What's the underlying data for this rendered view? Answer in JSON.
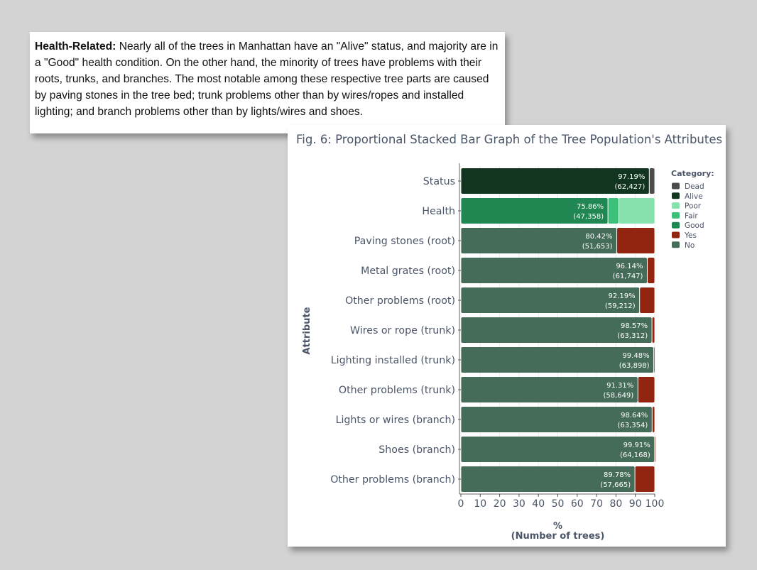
{
  "text_panel": {
    "lead": "Health-Related:",
    "body": " Nearly all of the trees in Manhattan have an \"Alive\" status, and majority are in a \"Good\" health condition. On the other hand, the minority of trees have problems with their roots, trunks, and branches. The most notable among these respective tree parts are caused by paving stones in the tree bed; trunk problems other than by wires/ropes and installed lighting; and branch problems other than by lights/wires and shoes."
  },
  "chart_data": {
    "type": "bar",
    "orientation": "horizontal",
    "stacked": "proportional",
    "title": "Fig. 6: Proportional Stacked Bar Graph of the Tree Population's Attributes",
    "xlabel_line1": "%",
    "xlabel_line2": "(Number of trees)",
    "ylabel": "Attribute",
    "xlim": [
      0,
      100
    ],
    "xticks": [
      "0",
      "10",
      "20",
      "30",
      "40",
      "50",
      "60",
      "70",
      "80",
      "90",
      "100"
    ],
    "legend_title": "Category:",
    "legend": [
      {
        "name": "Dead",
        "color": "#4b4b4b"
      },
      {
        "name": "Alive",
        "color": "#12351f"
      },
      {
        "name": "Poor",
        "color": "#86e1ac"
      },
      {
        "name": "Fair",
        "color": "#3cc07a"
      },
      {
        "name": "Good",
        "color": "#218752"
      },
      {
        "name": "Yes",
        "color": "#922510"
      },
      {
        "name": "No",
        "color": "#456b59"
      }
    ],
    "categories": [
      "Status",
      "Health",
      "Paving stones (root)",
      "Metal grates (root)",
      "Other problems (root)",
      "Wires or rope (trunk)",
      "Lighting installed (trunk)",
      "Other problems (trunk)",
      "Lights or wires (branch)",
      "Shoes (branch)",
      "Other problems (branch)"
    ],
    "bars": [
      {
        "segments": [
          {
            "category": "Alive",
            "value": 97.19
          },
          {
            "category": "Dead",
            "value": 2.81
          }
        ],
        "pct_label": "97.19%",
        "count_label": "(62,427)"
      },
      {
        "segments": [
          {
            "category": "Good",
            "value": 75.86
          },
          {
            "category": "Fair",
            "value": 5.6
          },
          {
            "category": "Poor",
            "value": 18.54
          }
        ],
        "pct_label": "75.86%",
        "count_label": "(47,358)"
      },
      {
        "segments": [
          {
            "category": "No",
            "value": 80.42
          },
          {
            "category": "Yes",
            "value": 19.58
          }
        ],
        "pct_label": "80.42%",
        "count_label": "(51,653)"
      },
      {
        "segments": [
          {
            "category": "No",
            "value": 96.14
          },
          {
            "category": "Yes",
            "value": 3.86
          }
        ],
        "pct_label": "96.14%",
        "count_label": "(61,747)"
      },
      {
        "segments": [
          {
            "category": "No",
            "value": 92.19
          },
          {
            "category": "Yes",
            "value": 7.81
          }
        ],
        "pct_label": "92.19%",
        "count_label": "(59,212)"
      },
      {
        "segments": [
          {
            "category": "No",
            "value": 98.57
          },
          {
            "category": "Yes",
            "value": 1.43
          }
        ],
        "pct_label": "98.57%",
        "count_label": "(63,312)"
      },
      {
        "segments": [
          {
            "category": "No",
            "value": 99.48
          },
          {
            "category": "Yes",
            "value": 0.52
          }
        ],
        "pct_label": "99.48%",
        "count_label": "(63,898)"
      },
      {
        "segments": [
          {
            "category": "No",
            "value": 91.31
          },
          {
            "category": "Yes",
            "value": 8.69
          }
        ],
        "pct_label": "91.31%",
        "count_label": "(58,649)"
      },
      {
        "segments": [
          {
            "category": "No",
            "value": 98.64
          },
          {
            "category": "Yes",
            "value": 1.36
          }
        ],
        "pct_label": "98.64%",
        "count_label": "(63,354)"
      },
      {
        "segments": [
          {
            "category": "No",
            "value": 99.91
          },
          {
            "category": "Yes",
            "value": 0.09
          }
        ],
        "pct_label": "99.91%",
        "count_label": "(64,168)"
      },
      {
        "segments": [
          {
            "category": "No",
            "value": 89.78
          },
          {
            "category": "Yes",
            "value": 10.22
          }
        ],
        "pct_label": "89.78%",
        "count_label": "(57,665)"
      }
    ]
  }
}
